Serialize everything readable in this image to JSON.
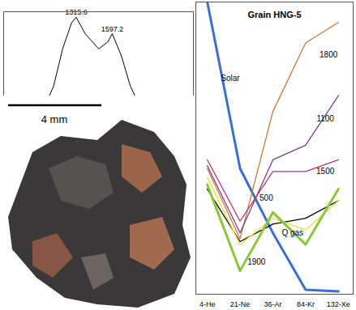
{
  "chart_data": [
    {
      "type": "line",
      "x": [
        752,
        893,
        1034,
        1140,
        1210,
        1280,
        1315.6,
        1386,
        1492,
        1562,
        1597.2,
        1668,
        1738,
        1808,
        1879,
        1949,
        2020,
        2090,
        2160,
        2230
      ],
      "values": [
        0.04,
        0.11,
        0.24,
        0.46,
        0.73,
        0.92,
        0.96,
        0.84,
        0.73,
        0.78,
        0.84,
        0.68,
        0.46,
        0.32,
        0.3,
        0.35,
        0.3,
        0.19,
        0.11,
        0.03
      ],
      "color": "#000000",
      "xlim": [
        750,
        2230
      ],
      "ylim": [
        0,
        1
      ],
      "tick_labels": false,
      "annotations": [
        {
          "x": 1315.6,
          "y": 0.96,
          "text": "1315.6"
        },
        {
          "x": 1597.2,
          "y": 0.84,
          "text": "1597.2"
        }
      ]
    },
    {
      "type": "image",
      "annotations": [
        "4 mm"
      ]
    },
    {
      "type": "line",
      "title": "Grain HNG-5",
      "categories": [
        "4-He",
        "21-Ne",
        "36-Ar",
        "84-Kr",
        "132-Xe"
      ],
      "series": [
        {
          "name": "Solar",
          "color": "#3a6fd0",
          "values": [
            100,
            43,
            21,
            1.5,
            1
          ]
        },
        {
          "name": "1800",
          "color": "#c8783a",
          "values": [
            43,
            19,
            62.5,
            86,
            93
          ]
        },
        {
          "name": "1100",
          "color": "#7b3f8c",
          "values": [
            44,
            21,
            46,
            51,
            68
          ]
        },
        {
          "name": "1500",
          "color": "#c0306a",
          "values": [
            46,
            25,
            42,
            42,
            46
          ]
        },
        {
          "name": "500",
          "color": "#000000",
          "values": [
            36,
            18,
            24,
            26,
            32
          ]
        },
        {
          "name": "1900",
          "color": "#e6e23a",
          "values": [
            40,
            17,
            26,
            22,
            32
          ]
        },
        {
          "name": "Q gas",
          "color": "#8cc63e",
          "values": [
            37.5,
            8,
            28,
            17,
            36
          ]
        }
      ],
      "ylim": [
        0,
        100
      ],
      "tick_labels": "x"
    }
  ]
}
